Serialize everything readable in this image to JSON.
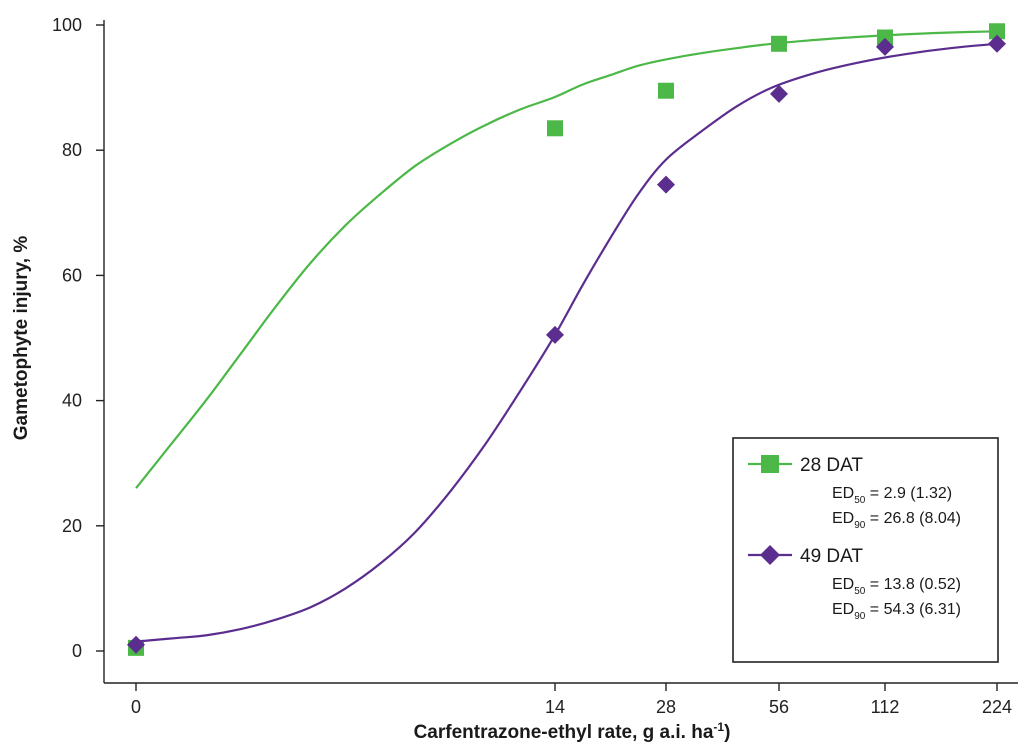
{
  "chart_data": {
    "type": "scatter",
    "xlabel": "Carfentrazone-ethyl rate, g a.i. ha",
    "xlabel_sup": "-1",
    "xlabel_tail": ")",
    "ylabel": "Gametophyte injury, %",
    "x_axis_scale": "log-spaced categories (0, 14, 28, 56, 112, 224)",
    "x_ticks": [
      "0",
      "14",
      "28",
      "56",
      "112",
      "224"
    ],
    "y_ticks": [
      "0",
      "20",
      "40",
      "60",
      "80",
      "100"
    ],
    "ylim": [
      0,
      100
    ],
    "grid": false,
    "legend_position": "bottom-right",
    "series": [
      {
        "name": "28 DAT",
        "color": "#4cb848",
        "marker": "square",
        "x": [
          0,
          14,
          28,
          56,
          112,
          224
        ],
        "y": [
          0.5,
          83.5,
          89.5,
          97,
          98,
          99
        ],
        "fit_curve": [
          [
            0,
            26
          ],
          [
            0.5,
            33
          ],
          [
            1,
            40
          ],
          [
            1.5,
            47.5
          ],
          [
            2,
            55
          ],
          [
            2.5,
            62
          ],
          [
            3,
            68
          ],
          [
            3.5,
            73
          ],
          [
            4,
            77.5
          ],
          [
            4.5,
            81
          ],
          [
            5,
            84
          ],
          [
            5.5,
            86.5
          ],
          [
            6,
            88.5
          ],
          [
            6.5,
            90.5
          ],
          [
            7,
            92
          ],
          [
            7.5,
            93.5
          ],
          [
            8,
            94.5
          ],
          [
            8.5,
            95.5
          ],
          [
            9,
            96.3
          ],
          [
            9.5,
            97
          ],
          [
            10,
            97.6
          ],
          [
            10.5,
            98.1
          ],
          [
            11,
            98.5
          ],
          [
            11.5,
            98.8
          ],
          [
            12,
            99
          ]
        ],
        "ed50": "2.9 (1.32)",
        "ed90": "26.8 (8.04)"
      },
      {
        "name": "49 DAT",
        "color": "#5b2d8e",
        "marker": "diamond",
        "x": [
          0,
          14,
          28,
          56,
          112,
          224
        ],
        "y": [
          1,
          50.5,
          74.5,
          89,
          96.5,
          97
        ],
        "fit_curve": [
          [
            0,
            1.5
          ],
          [
            0.5,
            2
          ],
          [
            1,
            2.5
          ],
          [
            1.5,
            3.5
          ],
          [
            2,
            5
          ],
          [
            2.5,
            7
          ],
          [
            3,
            10
          ],
          [
            3.5,
            14
          ],
          [
            4,
            19
          ],
          [
            4.5,
            25.5
          ],
          [
            5,
            33
          ],
          [
            5.5,
            41.5
          ],
          [
            6,
            50.5
          ],
          [
            6.5,
            58.5
          ],
          [
            7,
            66
          ],
          [
            7.5,
            73
          ],
          [
            8,
            78.5
          ],
          [
            8.5,
            83
          ],
          [
            9,
            87
          ],
          [
            9.5,
            90
          ],
          [
            10,
            92.3
          ],
          [
            10.5,
            94
          ],
          [
            11,
            95.3
          ],
          [
            11.5,
            96.3
          ],
          [
            12,
            97
          ]
        ],
        "ed50": "13.8 (0.52)",
        "ed90": "54.3 (6.31)"
      }
    ],
    "legend_entries": [
      {
        "label": "28 DAT",
        "ed50_prefix": "ED",
        "ed50_sub": "50",
        "ed50_value": " = 2.9 (1.32)",
        "ed90_prefix": "ED",
        "ed90_sub": "90",
        "ed90_value": " = 26.8 (8.04)"
      },
      {
        "label": "49 DAT",
        "ed50_prefix": "ED",
        "ed50_sub": "50",
        "ed50_value": " = 13.8 (0.52)",
        "ed90_prefix": "ED",
        "ed90_sub": "90",
        "ed90_value": " = 54.3 (6.31)"
      }
    ]
  }
}
